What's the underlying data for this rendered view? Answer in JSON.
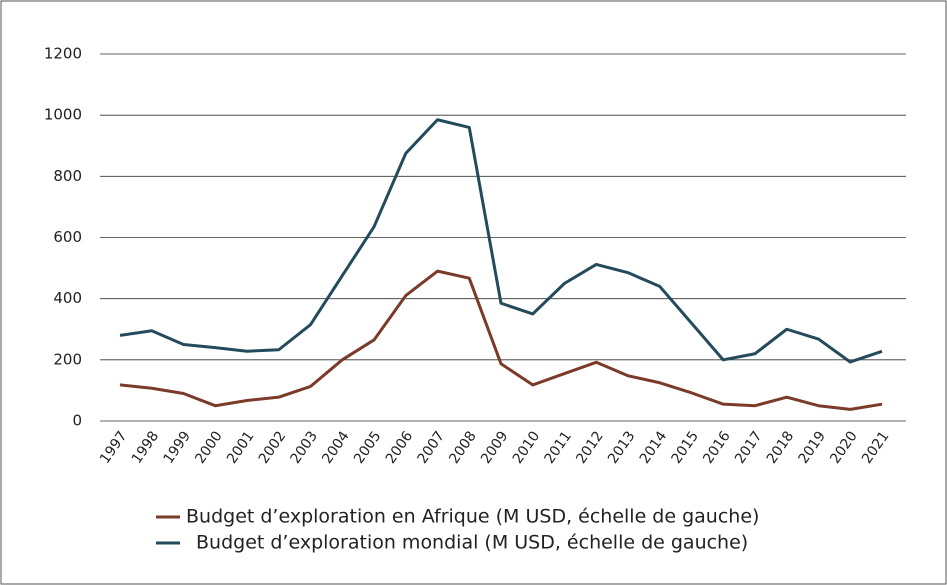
{
  "chart_data": {
    "type": "line",
    "categories": [
      "1997",
      "1998",
      "1999",
      "2000",
      "2001",
      "2002",
      "2003",
      "2004",
      "2005",
      "2006",
      "2007",
      "2008",
      "2009",
      "2010",
      "2011",
      "2012",
      "2013",
      "2014",
      "2015",
      "2016",
      "2017",
      "2018",
      "2019",
      "2020",
      "2021"
    ],
    "series": [
      {
        "name": "Budget d’exploration en Afrique (M USD, échelle de gauche)",
        "color": "#7b3a2a",
        "values": [
          118,
          107,
          90,
          50,
          67,
          78,
          113,
          200,
          265,
          410,
          490,
          467,
          187,
          118,
          155,
          192,
          148,
          125,
          92,
          55,
          50,
          78,
          50,
          38,
          55
        ]
      },
      {
        "name": "Budget d’exploration mondial (M USD, échelle de gauche)",
        "color": "#244b5c",
        "values": [
          280,
          295,
          250,
          240,
          228,
          233,
          315,
          475,
          635,
          875,
          985,
          960,
          385,
          350,
          450,
          512,
          485,
          440,
          320,
          200,
          220,
          300,
          268,
          193,
          228
        ]
      }
    ],
    "ylim": [
      0,
      1200
    ],
    "yticks": [
      0,
      200,
      400,
      600,
      800,
      1000,
      1200
    ],
    "grid": true
  }
}
